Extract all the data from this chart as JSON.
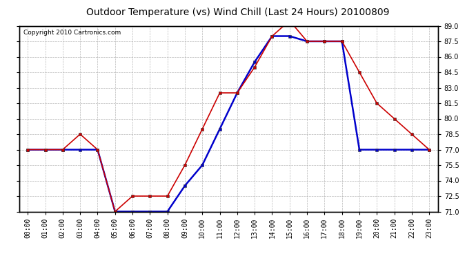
{
  "title": "Outdoor Temperature (vs) Wind Chill (Last 24 Hours) 20100809",
  "copyright": "Copyright 2010 Cartronics.com",
  "hours": [
    "00:00",
    "01:00",
    "02:00",
    "03:00",
    "04:00",
    "05:00",
    "06:00",
    "07:00",
    "08:00",
    "09:00",
    "10:00",
    "11:00",
    "12:00",
    "13:00",
    "14:00",
    "15:00",
    "16:00",
    "17:00",
    "18:00",
    "19:00",
    "20:00",
    "21:00",
    "22:00",
    "23:00"
  ],
  "temp": [
    77.0,
    77.0,
    77.0,
    78.5,
    77.0,
    71.0,
    72.5,
    72.5,
    72.5,
    75.5,
    79.0,
    82.5,
    82.5,
    85.0,
    88.0,
    89.5,
    87.5,
    87.5,
    87.5,
    84.5,
    81.5,
    80.0,
    78.5,
    77.0
  ],
  "wind_chill": [
    77.0,
    77.0,
    77.0,
    77.0,
    77.0,
    71.0,
    71.0,
    71.0,
    71.0,
    73.5,
    75.5,
    79.0,
    82.5,
    85.5,
    88.0,
    88.0,
    87.5,
    87.5,
    87.5,
    77.0,
    77.0,
    77.0,
    77.0,
    77.0
  ],
  "ylim_min": 71.0,
  "ylim_max": 89.0,
  "yticks": [
    71.0,
    72.5,
    74.0,
    75.5,
    77.0,
    78.5,
    80.0,
    81.5,
    83.0,
    84.5,
    86.0,
    87.5,
    89.0
  ],
  "temp_color": "#cc0000",
  "wind_chill_color": "#0000cc",
  "bg_color": "#ffffff",
  "grid_color": "#b0b0b0",
  "title_fontsize": 10,
  "copyright_fontsize": 6.5,
  "tick_label_fontsize": 7,
  "figwidth": 6.9,
  "figheight": 3.75,
  "dpi": 100
}
